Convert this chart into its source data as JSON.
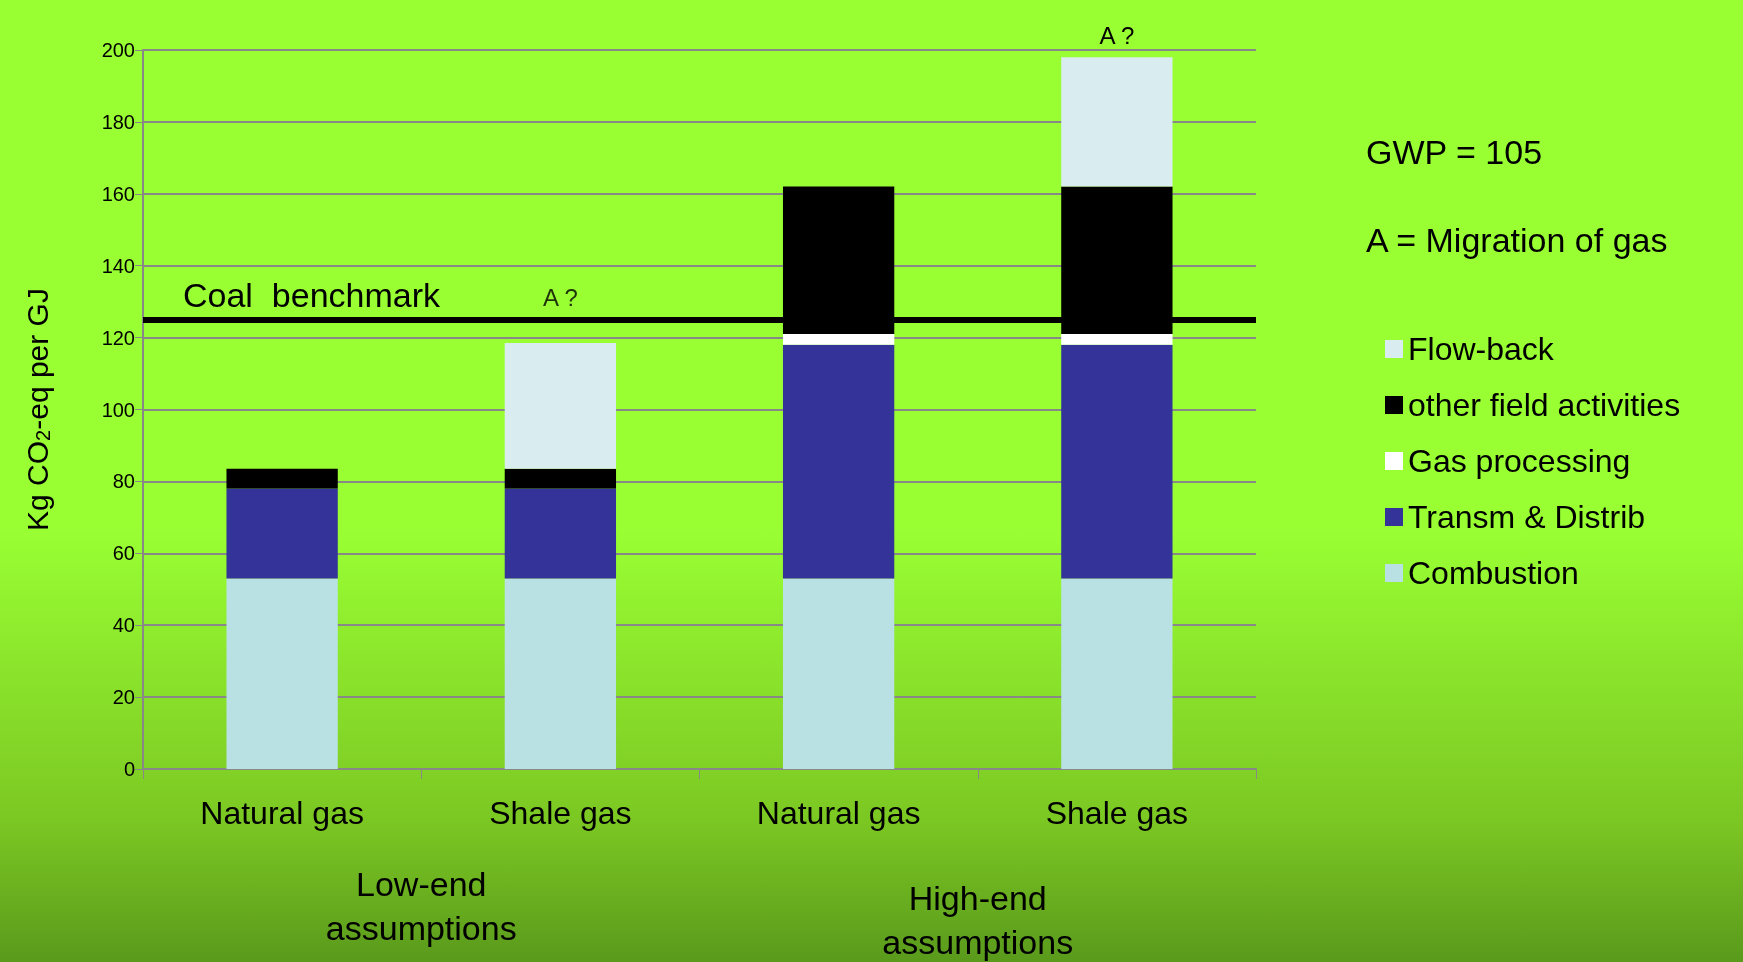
{
  "chart_data": {
    "type": "bar",
    "stacked": true,
    "ylabel": "Kg CO$_{2}$-eq per GJ",
    "categories": [
      "Natural gas",
      "Shale gas",
      "Natural gas",
      "Shale gas"
    ],
    "series": [
      {
        "name": "Combustion",
        "color": "#b9e0e3",
        "values": [
          53,
          53,
          53,
          53
        ]
      },
      {
        "name": "Transm & Distrib",
        "color": "#333399",
        "values": [
          25,
          25,
          65,
          65
        ]
      },
      {
        "name": "Gas processing",
        "color": "#ffffff",
        "values": [
          null,
          null,
          3,
          3
        ]
      },
      {
        "name": "other field activities",
        "color": "#000000",
        "values": [
          5.5,
          5.5,
          41,
          41
        ]
      },
      {
        "name": "Flow-back",
        "color": "#d9ecef",
        "values": [
          null,
          35,
          null,
          36
        ]
      }
    ],
    "ylim": [
      0,
      200
    ],
    "yticks": [
      0,
      20,
      40,
      60,
      80,
      100,
      120,
      140,
      160,
      180,
      200
    ],
    "grid": "y",
    "legend": "right",
    "ref_lines": [
      {
        "axis": "y",
        "value": 125,
        "label": "Coal  benchmark",
        "color": "#000000"
      }
    ],
    "annotations": [
      "GWP = 105",
      "A = Migration of gas",
      "Low-end assumptions",
      "High-end assumptions",
      {
        "text": "A ?",
        "x": "Shale gas",
        "y": 125
      },
      "A ?"
    ]
  }
}
